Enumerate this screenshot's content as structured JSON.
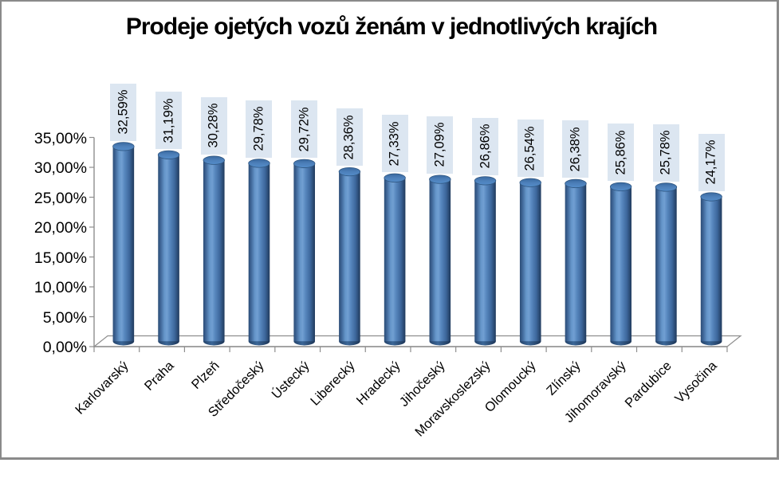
{
  "title": "Prodeje ojetých vozů ženám v jednotlivých krajích",
  "chart_data": {
    "type": "bar",
    "subtype": "cylinder-3d",
    "title": "Prodeje ojetých vozů ženám v jednotlivých krajích",
    "categories": [
      "Karlovarský",
      "Praha",
      "Plzeň",
      "Středočeský",
      "Ústecký",
      "Liberecký",
      "Hradecký",
      "Jihočeský",
      "Moravskoslezský",
      "Olomoucký",
      "Zlínský",
      "Jihomoravský",
      "Pardubice",
      "Vysočina"
    ],
    "values": [
      32.59,
      31.19,
      30.28,
      29.78,
      29.72,
      28.36,
      27.33,
      27.09,
      26.86,
      26.54,
      26.38,
      25.86,
      25.78,
      24.17
    ],
    "data_labels": [
      "32,59%",
      "31,19%",
      "30,28%",
      "29,78%",
      "29,72%",
      "28,36%",
      "27,33%",
      "27,09%",
      "26,86%",
      "26,54%",
      "26,38%",
      "25,86%",
      "25,78%",
      "24,17%"
    ],
    "y_tick_labels": [
      "0,00%",
      "5,00%",
      "10,00%",
      "15,00%",
      "20,00%",
      "25,00%",
      "30,00%",
      "35,00%"
    ],
    "ylim": [
      0,
      35
    ],
    "y_step": 5,
    "grid": false,
    "legend": false,
    "colors": {
      "bar_base": "#4f81bd",
      "bar_edge": "#2b4c76",
      "bar_highlight": "#719fd2",
      "label_box_bg": "#dce6f1",
      "axis_line": "#8e8e8e",
      "text": "#000000",
      "frame_border": "#8a8a8a"
    }
  }
}
